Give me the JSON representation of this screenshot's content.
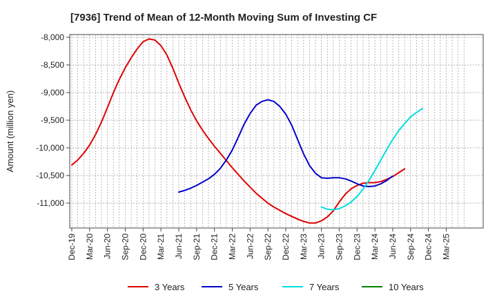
{
  "chart_data": {
    "type": "line",
    "title": "[7936]  Trend of Mean of 12-Month Moving Sum of Investing CF",
    "xlabel": "",
    "ylabel": "Amount (million yen)",
    "ylim": [
      -11450,
      -7950
    ],
    "yticks": [
      -8000,
      -8500,
      -9000,
      -9500,
      -10000,
      -10500,
      -11000
    ],
    "ytick_labels": [
      "-8,000",
      "-8,500",
      "-9,000",
      "-9,500",
      "-10,000",
      "-10,500",
      "-11,000"
    ],
    "x_start": "Dec-19",
    "x_months": 66,
    "xticks": [
      "Dec-19",
      "Mar-20",
      "Jun-20",
      "Sep-20",
      "Dec-20",
      "Mar-21",
      "Jun-21",
      "Sep-21",
      "Dec-21",
      "Mar-22",
      "Jun-22",
      "Sep-22",
      "Dec-22",
      "Mar-23",
      "Jun-23",
      "Sep-23",
      "Dec-23",
      "Mar-24",
      "Jun-24",
      "Sep-24",
      "Dec-24",
      "Mar-25"
    ],
    "grid": true,
    "legend_position": "bottom",
    "series": [
      {
        "name": "3 Years",
        "color": "#dd0000",
        "start_index": 0,
        "values": [
          -10310,
          -10220,
          -10100,
          -9950,
          -9760,
          -9530,
          -9270,
          -9000,
          -8760,
          -8550,
          -8370,
          -8210,
          -8080,
          -8030,
          -8050,
          -8150,
          -8320,
          -8560,
          -8830,
          -9080,
          -9310,
          -9510,
          -9680,
          -9830,
          -9970,
          -10100,
          -10230,
          -10360,
          -10480,
          -10600,
          -10710,
          -10820,
          -10910,
          -11000,
          -11070,
          -11130,
          -11190,
          -11240,
          -11290,
          -11330,
          -11360,
          -11360,
          -11320,
          -11250,
          -11140,
          -10980,
          -10840,
          -10740,
          -10680,
          -10640,
          -10630,
          -10630,
          -10610,
          -10570,
          -10520,
          -10450,
          -10380
        ]
      },
      {
        "name": "5 Years",
        "color": "#0000cc",
        "start_index": 18,
        "values": [
          -10800,
          -10770,
          -10730,
          -10680,
          -10620,
          -10560,
          -10480,
          -10370,
          -10220,
          -10040,
          -9810,
          -9570,
          -9380,
          -9230,
          -9160,
          -9130,
          -9160,
          -9250,
          -9390,
          -9590,
          -9850,
          -10110,
          -10320,
          -10460,
          -10540,
          -10550,
          -10540,
          -10540,
          -10560,
          -10600,
          -10650,
          -10690,
          -10700,
          -10690,
          -10650,
          -10590,
          -10510
        ]
      },
      {
        "name": "7 Years",
        "color": "#00dddd",
        "start_index": 42,
        "values": [
          -11070,
          -11110,
          -11120,
          -11100,
          -11050,
          -10980,
          -10880,
          -10750,
          -10590,
          -10410,
          -10220,
          -10030,
          -9850,
          -9690,
          -9560,
          -9440,
          -9360,
          -9290
        ]
      },
      {
        "name": "10 Years",
        "color": "#008000",
        "start_index": 0,
        "values": []
      }
    ]
  }
}
